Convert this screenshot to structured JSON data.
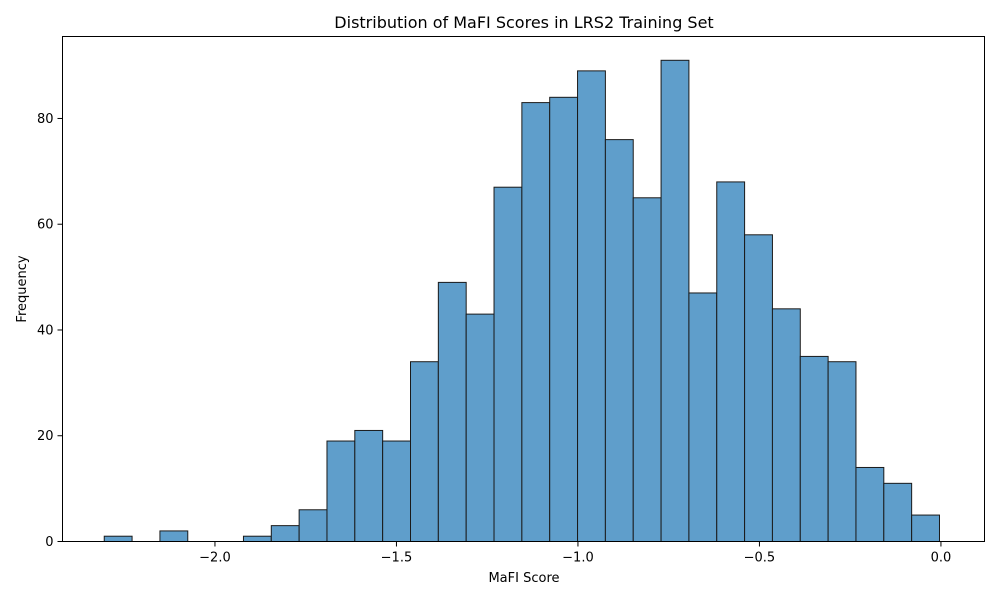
{
  "chart_data": {
    "type": "bar",
    "title": "Distribution of MaFI Scores in LRS2 Training Set",
    "xlabel": "MaFI Score",
    "ylabel": "Frequency",
    "bin_start": -2.305,
    "bin_width": 0.0767,
    "values": [
      1,
      0,
      2,
      0,
      0,
      1,
      3,
      6,
      19,
      21,
      19,
      34,
      49,
      43,
      67,
      83,
      84,
      89,
      76,
      65,
      91,
      47,
      68,
      58,
      44,
      35,
      34,
      14,
      11,
      5
    ],
    "xlim": [
      -2.42,
      0.12
    ],
    "ylim": [
      0,
      95.5
    ],
    "xticks": [
      -2.0,
      -1.5,
      -1.0,
      -0.5,
      0.0
    ],
    "xtick_labels": [
      "−2.0",
      "−1.5",
      "−1.0",
      "−0.5",
      "0.0"
    ],
    "yticks": [
      0,
      20,
      40,
      60,
      80
    ],
    "ytick_labels": [
      "0",
      "20",
      "40",
      "60",
      "80"
    ],
    "bar_color": "#5f9ecb",
    "edge_color": "#1a1a1a",
    "grid": false,
    "legend": "none"
  }
}
